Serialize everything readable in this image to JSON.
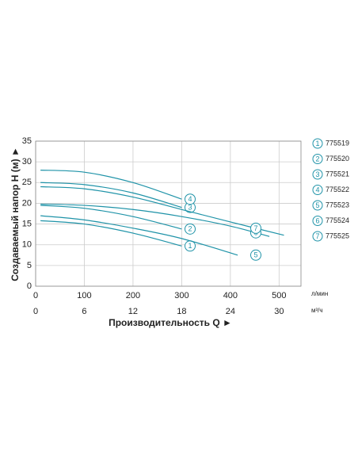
{
  "chart_data": {
    "type": "line",
    "ylabel": "Создаваемый напор H (м) ►",
    "xlabel": "Производительность Q ►",
    "xunit": "л/мин",
    "x2unit": "м³/ч",
    "xlim": [
      0,
      545
    ],
    "xticks": [
      0,
      100,
      200,
      300,
      400,
      500
    ],
    "x2lim": [
      0,
      32.7
    ],
    "x2ticks": [
      0,
      6,
      12,
      18,
      24,
      30
    ],
    "ylim": [
      0,
      35
    ],
    "yticks": [
      0,
      5,
      10,
      15,
      20,
      25,
      30,
      35
    ],
    "grid": true,
    "color": "#1f93a8",
    "series": [
      {
        "label": "1",
        "name": "775519",
        "x": [
          10,
          100,
          200,
          300
        ],
        "values": [
          15.8,
          15,
          12.8,
          9.7
        ]
      },
      {
        "label": "2",
        "name": "775520",
        "x": [
          10,
          100,
          200,
          300
        ],
        "values": [
          19.5,
          18.8,
          16.8,
          13.8
        ]
      },
      {
        "label": "3",
        "name": "775521",
        "x": [
          10,
          100,
          200,
          300
        ],
        "values": [
          25,
          24.5,
          22.5,
          19
        ]
      },
      {
        "label": "4",
        "name": "775522",
        "x": [
          10,
          100,
          200,
          300
        ],
        "values": [
          28,
          27.5,
          25,
          21
        ]
      },
      {
        "label": "5",
        "name": "775523",
        "x": [
          10,
          100,
          200,
          300,
          415
        ],
        "values": [
          17,
          16,
          14,
          11.5,
          7.5
        ]
      },
      {
        "label": "6",
        "name": "775524",
        "x": [
          10,
          100,
          200,
          300,
          400,
          480
        ],
        "values": [
          19.8,
          19.5,
          18.5,
          16.8,
          14.5,
          12
        ]
      },
      {
        "label": "7",
        "name": "775525",
        "x": [
          10,
          100,
          200,
          300,
          400,
          510
        ],
        "values": [
          24,
          23.5,
          21.5,
          18.5,
          15.5,
          12.3
        ]
      }
    ]
  }
}
